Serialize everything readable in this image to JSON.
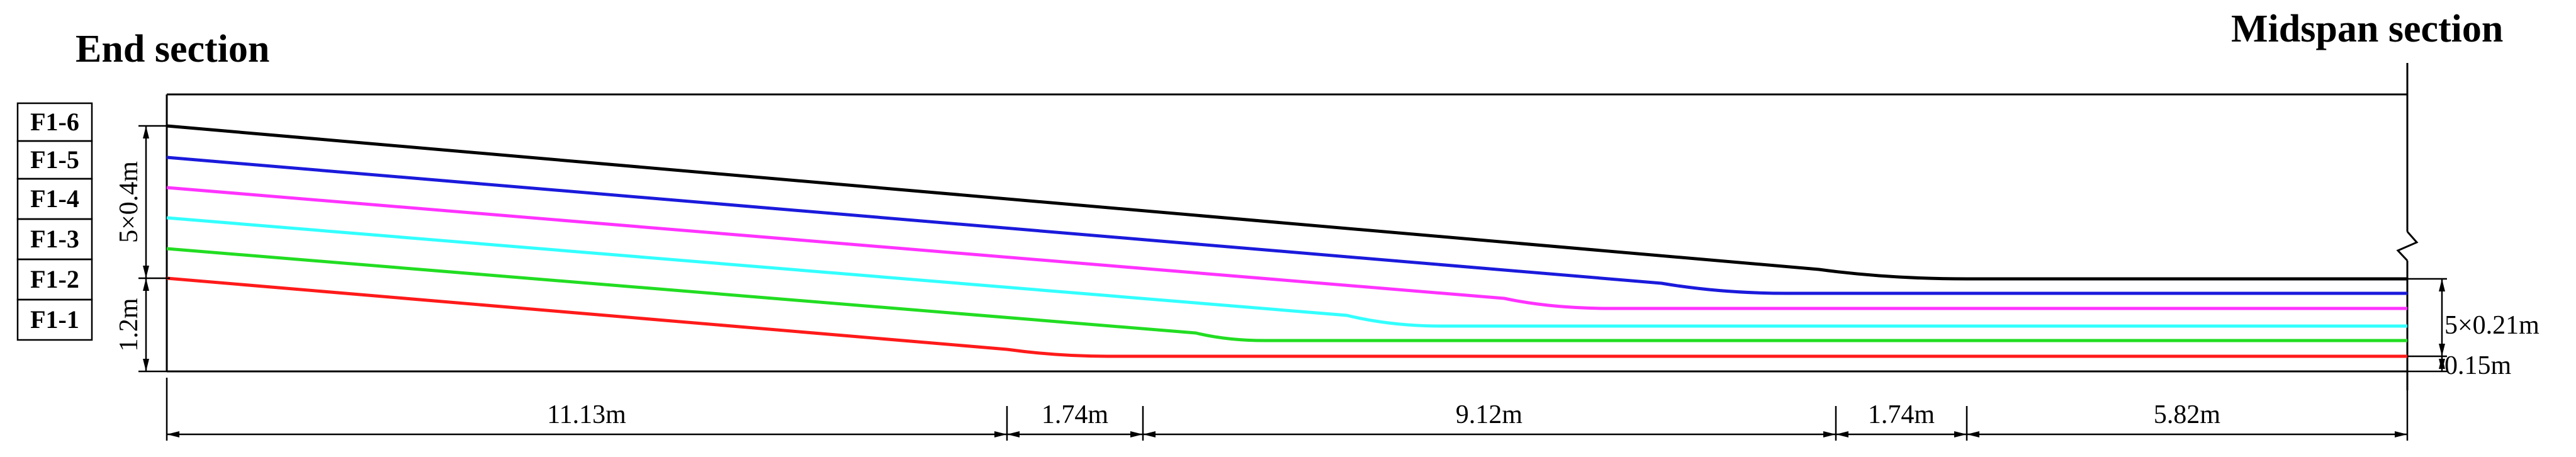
{
  "titles": {
    "end": "End section",
    "midspan": "Midspan section"
  },
  "strands": [
    {
      "label": "F1-6",
      "color": "#000000"
    },
    {
      "label": "F1-5",
      "color": "#1a1adc"
    },
    {
      "label": "F1-4",
      "color": "#ff33ff"
    },
    {
      "label": "F1-3",
      "color": "#33ffff"
    },
    {
      "label": "F1-2",
      "color": "#22dd22"
    },
    {
      "label": "F1-1",
      "color": "#ff1a1a"
    }
  ],
  "dimensions": {
    "horizontal": [
      "11.13m",
      "1.74m",
      "9.12m",
      "1.74m",
      "5.82m"
    ],
    "end_upper": "5×0.4m",
    "end_lower": "1.2m",
    "mid_spacing": "5×0.21m",
    "mid_bottom": "0.15m"
  }
}
